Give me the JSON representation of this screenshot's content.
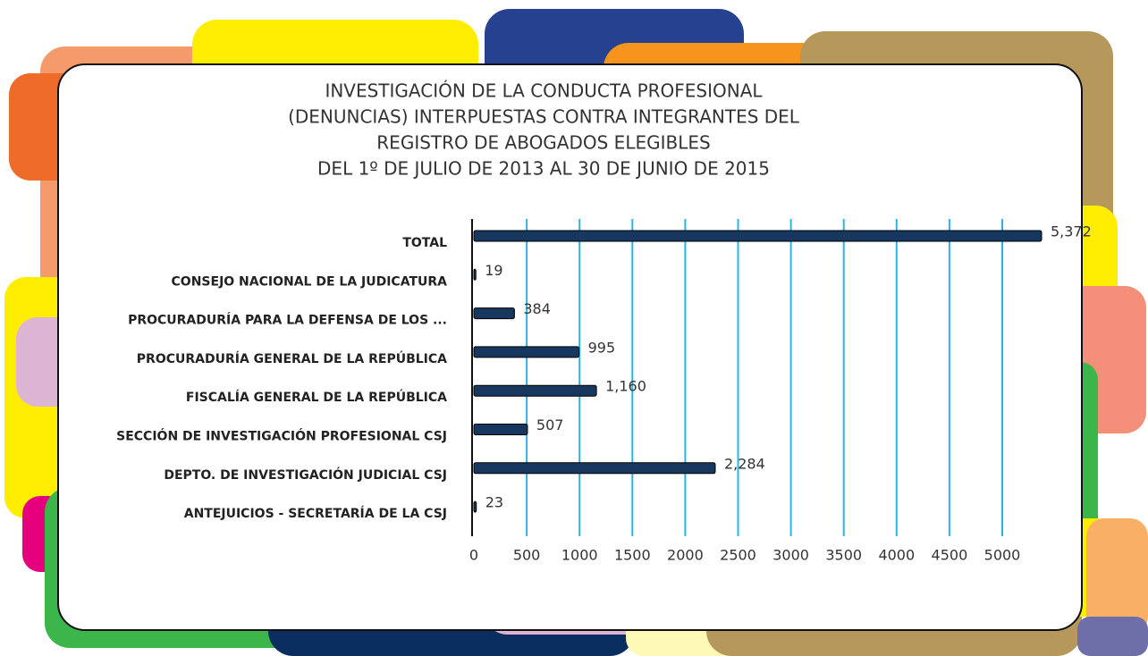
{
  "chart_data": {
    "type": "bar",
    "orientation": "horizontal",
    "title": [
      "INVESTIGACIÓN DE LA CONDUCTA PROFESIONAL",
      "(DENUNCIAS) INTERPUESTAS CONTRA INTEGRANTES DEL",
      "REGISTRO DE ABOGADOS ELEGIBLES",
      "DEL 1º DE JULIO DE 2013 AL 30 DE JUNIO DE 2015"
    ],
    "categories": [
      "TOTAL",
      "CONSEJO NACIONAL DE LA JUDICATURA",
      "PROCURADURÍA PARA LA DEFENSA DE LOS ...",
      "PROCURADURÍA GENERAL DE LA REPÚBLICA",
      "FISCALÍA GENERAL DE LA REPÚBLICA",
      "SECCIÓN DE INVESTIGACIÓN PROFESIONAL CSJ",
      "DEPTO. DE INVESTIGACIÓN JUDICIAL CSJ",
      "ANTEJUICIOS - SECRETARÍA DE LA CSJ"
    ],
    "values": [
      5372,
      19,
      384,
      995,
      1160,
      507,
      2284,
      23
    ],
    "value_labels": [
      "5,372",
      "19",
      "384",
      "995",
      "1,160",
      "507",
      "2,284",
      "23"
    ],
    "color": "#17375e",
    "grid_color": "#29b6e6",
    "xlim": [
      0,
      5500
    ],
    "xticks": [
      0,
      500,
      1000,
      1500,
      2000,
      2500,
      3000,
      3500,
      4000,
      4500,
      5000
    ],
    "grid": true
  }
}
